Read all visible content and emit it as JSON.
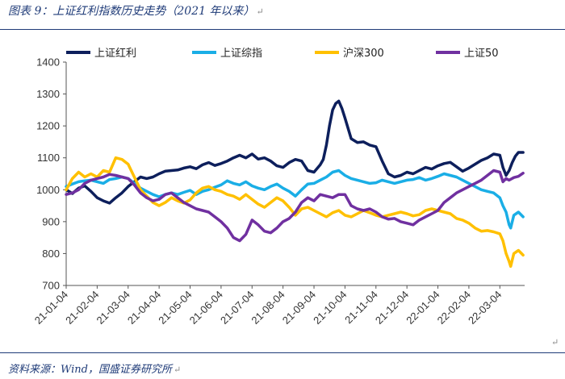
{
  "header": {
    "title": "图表 9：上证红利指数历史走势（2021 年以来）",
    "enter_mark": "↵"
  },
  "footer": {
    "source": "资料来源：Wind，国盛证券研究所",
    "enter_mark": "↵"
  },
  "aside_mark": "↵",
  "colors": {
    "rule": "#1f3b78",
    "hongli": "#0d1f5c",
    "zongzhi": "#1aaee6",
    "hs300": "#ffc000",
    "sz50": "#7030a0"
  },
  "chart_data": {
    "type": "line",
    "title": "",
    "xlabel": "",
    "ylabel": "",
    "ylim": [
      700,
      1400
    ],
    "yticks": [
      700,
      800,
      900,
      1000,
      1100,
      1200,
      1300,
      1400
    ],
    "x_tick_labels": [
      "21-01-04",
      "21-02-04",
      "21-03-04",
      "21-04-04",
      "21-05-04",
      "21-06-04",
      "21-07-04",
      "21-08-04",
      "21-09-04",
      "21-10-04",
      "21-11-04",
      "21-12-04",
      "22-01-04",
      "22-02-04",
      "22-03-04"
    ],
    "x_range_months": [
      0,
      14.8
    ],
    "grid": false,
    "legend_position": "top",
    "series": [
      {
        "name": "上证红利",
        "color": "#0d1f5c",
        "points": [
          [
            0,
            1000
          ],
          [
            0.2,
            988
          ],
          [
            0.4,
            1005
          ],
          [
            0.6,
            1012
          ],
          [
            0.8,
            995
          ],
          [
            1.0,
            975
          ],
          [
            1.2,
            965
          ],
          [
            1.4,
            958
          ],
          [
            1.6,
            975
          ],
          [
            1.8,
            990
          ],
          [
            2.0,
            1010
          ],
          [
            2.2,
            1025
          ],
          [
            2.4,
            1040
          ],
          [
            2.6,
            1035
          ],
          [
            2.8,
            1040
          ],
          [
            3.0,
            1050
          ],
          [
            3.2,
            1058
          ],
          [
            3.4,
            1060
          ],
          [
            3.6,
            1062
          ],
          [
            3.8,
            1068
          ],
          [
            4.0,
            1072
          ],
          [
            4.2,
            1066
          ],
          [
            4.4,
            1078
          ],
          [
            4.6,
            1085
          ],
          [
            4.8,
            1076
          ],
          [
            5.0,
            1082
          ],
          [
            5.2,
            1090
          ],
          [
            5.4,
            1100
          ],
          [
            5.6,
            1108
          ],
          [
            5.8,
            1100
          ],
          [
            6.0,
            1112
          ],
          [
            6.2,
            1096
          ],
          [
            6.4,
            1100
          ],
          [
            6.6,
            1090
          ],
          [
            6.8,
            1075
          ],
          [
            7.0,
            1070
          ],
          [
            7.2,
            1085
          ],
          [
            7.4,
            1095
          ],
          [
            7.6,
            1090
          ],
          [
            7.8,
            1060
          ],
          [
            8.0,
            1055
          ],
          [
            8.2,
            1078
          ],
          [
            8.3,
            1095
          ],
          [
            8.4,
            1140
          ],
          [
            8.5,
            1200
          ],
          [
            8.6,
            1250
          ],
          [
            8.7,
            1270
          ],
          [
            8.8,
            1278
          ],
          [
            8.9,
            1255
          ],
          [
            9.0,
            1225
          ],
          [
            9.2,
            1160
          ],
          [
            9.4,
            1148
          ],
          [
            9.6,
            1150
          ],
          [
            9.8,
            1140
          ],
          [
            10.0,
            1135
          ],
          [
            10.2,
            1090
          ],
          [
            10.4,
            1050
          ],
          [
            10.6,
            1040
          ],
          [
            10.8,
            1045
          ],
          [
            11.0,
            1055
          ],
          [
            11.2,
            1050
          ],
          [
            11.4,
            1060
          ],
          [
            11.6,
            1070
          ],
          [
            11.8,
            1065
          ],
          [
            12.0,
            1075
          ],
          [
            12.2,
            1082
          ],
          [
            12.4,
            1086
          ],
          [
            12.6,
            1072
          ],
          [
            12.8,
            1058
          ],
          [
            13.0,
            1068
          ],
          [
            13.2,
            1080
          ],
          [
            13.4,
            1092
          ],
          [
            13.6,
            1100
          ],
          [
            13.8,
            1112
          ],
          [
            14.0,
            1108
          ],
          [
            14.1,
            1070
          ],
          [
            14.2,
            1045
          ],
          [
            14.3,
            1060
          ],
          [
            14.4,
            1085
          ],
          [
            14.5,
            1105
          ],
          [
            14.6,
            1117
          ],
          [
            14.75,
            1117
          ]
        ]
      },
      {
        "name": "上证综指",
        "color": "#1aaee6",
        "points": [
          [
            0,
            1010
          ],
          [
            0.2,
            1018
          ],
          [
            0.4,
            1025
          ],
          [
            0.6,
            1028
          ],
          [
            0.8,
            1030
          ],
          [
            1.0,
            1025
          ],
          [
            1.2,
            1020
          ],
          [
            1.4,
            1032
          ],
          [
            1.6,
            1035
          ],
          [
            1.8,
            1040
          ],
          [
            2.0,
            1035
          ],
          [
            2.2,
            1020
          ],
          [
            2.4,
            1005
          ],
          [
            2.6,
            995
          ],
          [
            2.8,
            985
          ],
          [
            3.0,
            978
          ],
          [
            3.2,
            985
          ],
          [
            3.4,
            990
          ],
          [
            3.6,
            985
          ],
          [
            3.8,
            992
          ],
          [
            4.0,
            998
          ],
          [
            4.2,
            985
          ],
          [
            4.4,
            995
          ],
          [
            4.6,
            1000
          ],
          [
            4.8,
            1008
          ],
          [
            5.0,
            1015
          ],
          [
            5.2,
            1028
          ],
          [
            5.4,
            1020
          ],
          [
            5.6,
            1015
          ],
          [
            5.8,
            1025
          ],
          [
            6.0,
            1012
          ],
          [
            6.2,
            1005
          ],
          [
            6.4,
            1000
          ],
          [
            6.6,
            1010
          ],
          [
            6.8,
            1018
          ],
          [
            7.0,
            1005
          ],
          [
            7.2,
            995
          ],
          [
            7.4,
            980
          ],
          [
            7.6,
            1000
          ],
          [
            7.8,
            1018
          ],
          [
            8.0,
            1020
          ],
          [
            8.2,
            1030
          ],
          [
            8.4,
            1040
          ],
          [
            8.6,
            1055
          ],
          [
            8.8,
            1060
          ],
          [
            9.0,
            1045
          ],
          [
            9.2,
            1035
          ],
          [
            9.4,
            1030
          ],
          [
            9.6,
            1025
          ],
          [
            9.8,
            1020
          ],
          [
            10.0,
            1022
          ],
          [
            10.2,
            1030
          ],
          [
            10.4,
            1025
          ],
          [
            10.6,
            1020
          ],
          [
            10.8,
            1025
          ],
          [
            11.0,
            1030
          ],
          [
            11.2,
            1032
          ],
          [
            11.4,
            1038
          ],
          [
            11.6,
            1030
          ],
          [
            11.8,
            1035
          ],
          [
            12.0,
            1042
          ],
          [
            12.2,
            1050
          ],
          [
            12.4,
            1045
          ],
          [
            12.6,
            1040
          ],
          [
            12.8,
            1030
          ],
          [
            13.0,
            1020
          ],
          [
            13.2,
            1010
          ],
          [
            13.4,
            1000
          ],
          [
            13.6,
            995
          ],
          [
            13.8,
            990
          ],
          [
            14.0,
            975
          ],
          [
            14.1,
            950
          ],
          [
            14.2,
            930
          ],
          [
            14.3,
            890
          ],
          [
            14.35,
            880
          ],
          [
            14.45,
            920
          ],
          [
            14.6,
            930
          ],
          [
            14.75,
            915
          ]
        ]
      },
      {
        "name": "沪深300",
        "color": "#ffc000",
        "points": [
          [
            0,
            1000
          ],
          [
            0.2,
            1035
          ],
          [
            0.4,
            1055
          ],
          [
            0.6,
            1040
          ],
          [
            0.8,
            1050
          ],
          [
            1.0,
            1040
          ],
          [
            1.2,
            1060
          ],
          [
            1.4,
            1055
          ],
          [
            1.6,
            1100
          ],
          [
            1.8,
            1095
          ],
          [
            2.0,
            1080
          ],
          [
            2.2,
            1040
          ],
          [
            2.4,
            1000
          ],
          [
            2.6,
            980
          ],
          [
            2.8,
            960
          ],
          [
            3.0,
            950
          ],
          [
            3.2,
            960
          ],
          [
            3.4,
            975
          ],
          [
            3.6,
            965
          ],
          [
            3.8,
            958
          ],
          [
            4.0,
            968
          ],
          [
            4.2,
            990
          ],
          [
            4.4,
            1005
          ],
          [
            4.6,
            1010
          ],
          [
            4.8,
            1000
          ],
          [
            5.0,
            995
          ],
          [
            5.2,
            985
          ],
          [
            5.4,
            980
          ],
          [
            5.6,
            970
          ],
          [
            5.8,
            985
          ],
          [
            6.0,
            970
          ],
          [
            6.2,
            955
          ],
          [
            6.4,
            945
          ],
          [
            6.6,
            960
          ],
          [
            6.8,
            975
          ],
          [
            7.0,
            965
          ],
          [
            7.2,
            945
          ],
          [
            7.4,
            920
          ],
          [
            7.6,
            940
          ],
          [
            7.8,
            945
          ],
          [
            8.0,
            935
          ],
          [
            8.2,
            925
          ],
          [
            8.4,
            915
          ],
          [
            8.6,
            928
          ],
          [
            8.8,
            935
          ],
          [
            9.0,
            920
          ],
          [
            9.2,
            915
          ],
          [
            9.4,
            925
          ],
          [
            9.6,
            935
          ],
          [
            9.8,
            928
          ],
          [
            10.0,
            920
          ],
          [
            10.2,
            915
          ],
          [
            10.4,
            920
          ],
          [
            10.6,
            925
          ],
          [
            10.8,
            930
          ],
          [
            11.0,
            925
          ],
          [
            11.2,
            918
          ],
          [
            11.4,
            922
          ],
          [
            11.6,
            935
          ],
          [
            11.8,
            940
          ],
          [
            12.0,
            935
          ],
          [
            12.2,
            930
          ],
          [
            12.4,
            925
          ],
          [
            12.6,
            910
          ],
          [
            12.8,
            905
          ],
          [
            13.0,
            895
          ],
          [
            13.2,
            880
          ],
          [
            13.4,
            870
          ],
          [
            13.6,
            872
          ],
          [
            13.8,
            868
          ],
          [
            14.0,
            862
          ],
          [
            14.1,
            840
          ],
          [
            14.2,
            800
          ],
          [
            14.3,
            775
          ],
          [
            14.35,
            760
          ],
          [
            14.45,
            800
          ],
          [
            14.6,
            810
          ],
          [
            14.75,
            795
          ]
        ]
      },
      {
        "name": "上证50",
        "color": "#7030a0",
        "points": [
          [
            0,
            985
          ],
          [
            0.2,
            990
          ],
          [
            0.4,
            1000
          ],
          [
            0.6,
            1020
          ],
          [
            0.8,
            1030
          ],
          [
            1.0,
            1035
          ],
          [
            1.2,
            1040
          ],
          [
            1.4,
            1048
          ],
          [
            1.6,
            1045
          ],
          [
            1.8,
            1040
          ],
          [
            2.0,
            1035
          ],
          [
            2.2,
            1015
          ],
          [
            2.4,
            990
          ],
          [
            2.6,
            975
          ],
          [
            2.8,
            965
          ],
          [
            3.0,
            970
          ],
          [
            3.2,
            985
          ],
          [
            3.4,
            990
          ],
          [
            3.6,
            975
          ],
          [
            3.8,
            960
          ],
          [
            4.0,
            950
          ],
          [
            4.2,
            940
          ],
          [
            4.4,
            935
          ],
          [
            4.6,
            930
          ],
          [
            4.8,
            915
          ],
          [
            5.0,
            900
          ],
          [
            5.2,
            880
          ],
          [
            5.4,
            850
          ],
          [
            5.6,
            840
          ],
          [
            5.8,
            860
          ],
          [
            6.0,
            905
          ],
          [
            6.2,
            890
          ],
          [
            6.4,
            870
          ],
          [
            6.6,
            865
          ],
          [
            6.8,
            880
          ],
          [
            7.0,
            900
          ],
          [
            7.2,
            910
          ],
          [
            7.4,
            930
          ],
          [
            7.6,
            960
          ],
          [
            7.8,
            975
          ],
          [
            8.0,
            965
          ],
          [
            8.2,
            985
          ],
          [
            8.4,
            980
          ],
          [
            8.6,
            975
          ],
          [
            8.8,
            985
          ],
          [
            9.0,
            985
          ],
          [
            9.2,
            950
          ],
          [
            9.4,
            940
          ],
          [
            9.6,
            935
          ],
          [
            9.8,
            940
          ],
          [
            10.0,
            930
          ],
          [
            10.2,
            915
          ],
          [
            10.4,
            908
          ],
          [
            10.6,
            910
          ],
          [
            10.8,
            900
          ],
          [
            11.0,
            895
          ],
          [
            11.2,
            890
          ],
          [
            11.4,
            905
          ],
          [
            11.6,
            915
          ],
          [
            11.8,
            925
          ],
          [
            12.0,
            935
          ],
          [
            12.2,
            960
          ],
          [
            12.4,
            975
          ],
          [
            12.6,
            990
          ],
          [
            12.8,
            1000
          ],
          [
            13.0,
            1010
          ],
          [
            13.2,
            1020
          ],
          [
            13.4,
            1030
          ],
          [
            13.6,
            1045
          ],
          [
            13.8,
            1060
          ],
          [
            14.0,
            1055
          ],
          [
            14.1,
            1025
          ],
          [
            14.2,
            1035
          ],
          [
            14.3,
            1030
          ],
          [
            14.45,
            1038
          ],
          [
            14.6,
            1042
          ],
          [
            14.75,
            1052
          ]
        ]
      }
    ]
  }
}
